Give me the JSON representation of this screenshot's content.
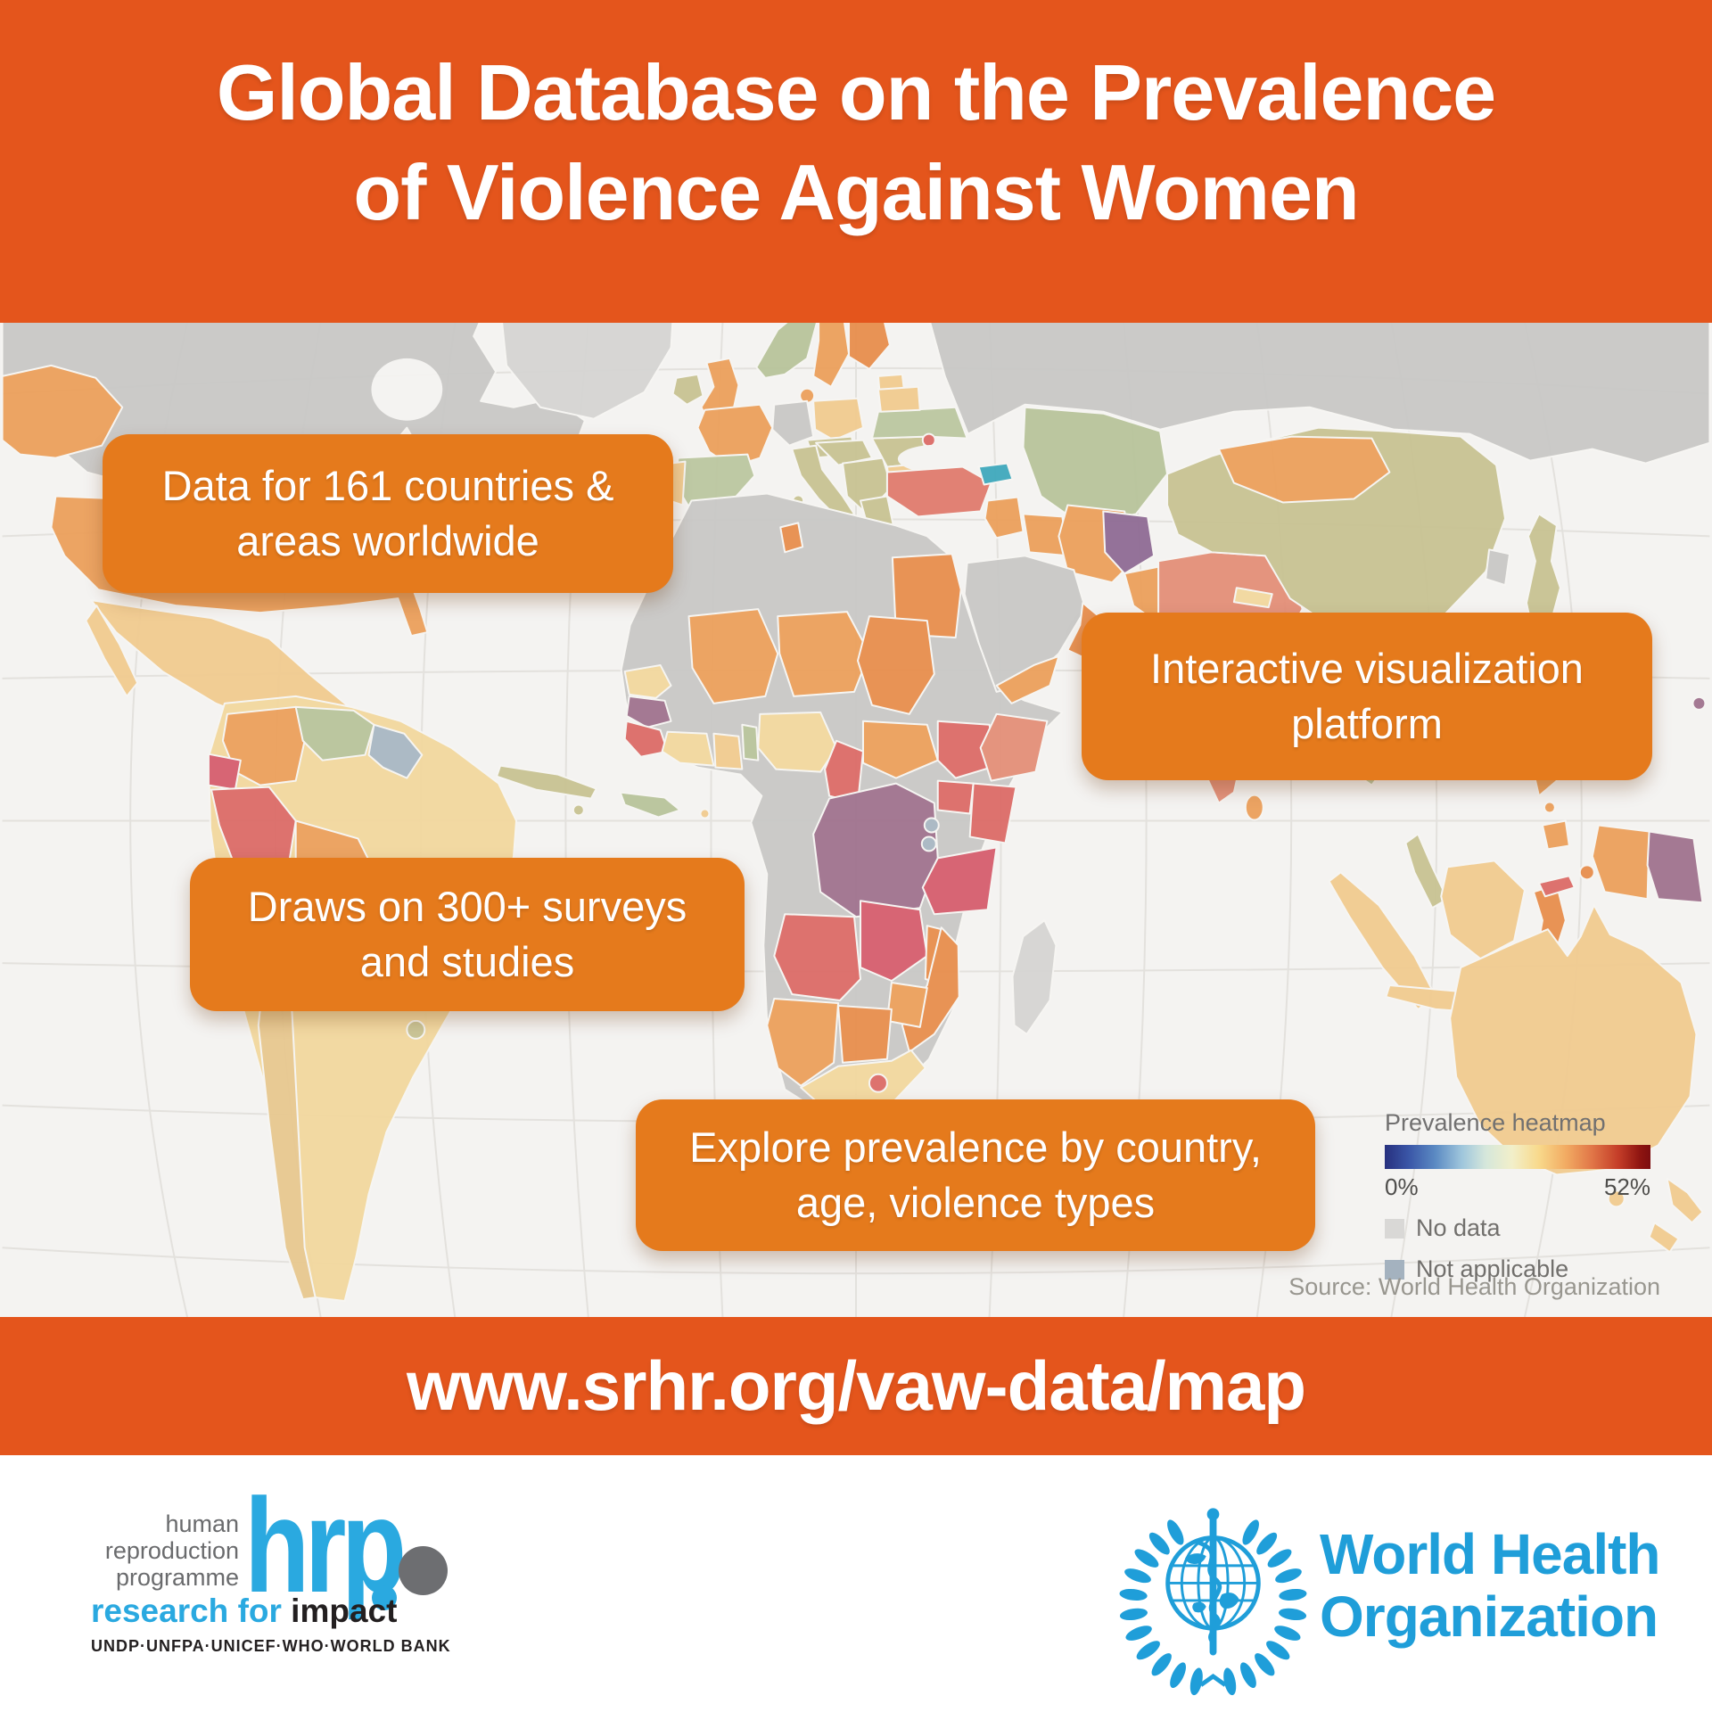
{
  "title": {
    "line1": "Global Database on the Prevalence",
    "line2": "of Violence Against Women"
  },
  "callouts": {
    "countries": {
      "line1": "Data for 161 countries &",
      "line2": "areas worldwide"
    },
    "platform": {
      "line1": "Interactive visualization",
      "line2": "platform"
    },
    "surveys": {
      "line1": "Draws on 300+ surveys",
      "line2": "and studies"
    },
    "explore": {
      "line1": "Explore prevalence by country,",
      "line2": "age, violence types"
    }
  },
  "legend": {
    "title": "Prevalence heatmap",
    "min_label": "0%",
    "max_label": "52%",
    "no_data_label": "No data",
    "not_applicable_label": "Not applicable"
  },
  "map": {
    "type": "world choropleth",
    "source": "Source: World Health Organization"
  },
  "url_banner": "www.srhr.org/vaw-data/map",
  "hrp_logo": {
    "tagline_line1": "human",
    "tagline_line2": "reproduction",
    "tagline_line3": "programme",
    "acronym": "hrp",
    "slogan_blue": "research for",
    "slogan_dark": "impact",
    "partners": "UNDP·UNFPA·UNICEF·WHO·WORLD BANK"
  },
  "who_logo": {
    "line1": "World Health",
    "line2": "Organization"
  },
  "colors": {
    "banner_orange": "#E4551C",
    "callout_orange": "#E57A1C",
    "who_blue": "#1F9ED9",
    "hrp_blue": "#2AA9E0",
    "no_data_gray": "#D9D8D6",
    "not_applicable_gray": "#A4B2BF",
    "heatmap_min": "#27307E",
    "heatmap_max": "#7C0D0F"
  }
}
